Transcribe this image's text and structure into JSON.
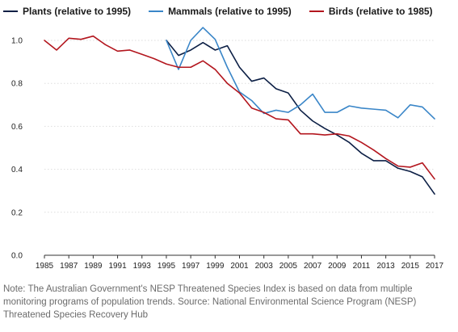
{
  "chart_data": {
    "type": "line",
    "title": "",
    "xlabel": "",
    "ylabel": "",
    "xlim": [
      1985,
      2017
    ],
    "ylim": [
      0.0,
      1.0
    ],
    "grid": true,
    "legend_position": "top-left",
    "x_ticks": [
      "1985",
      "1987",
      "1989",
      "1991",
      "1993",
      "1995",
      "1997",
      "1999",
      "2001",
      "2003",
      "2005",
      "2007",
      "2009",
      "2011",
      "2013",
      "2015",
      "2017"
    ],
    "y_ticks": [
      "0.0",
      "0.2",
      "0.4",
      "0.6",
      "0.8",
      "1.0"
    ],
    "series": [
      {
        "name": "Plants (relative to 1995)",
        "color": "#0c1f45",
        "x": [
          1995,
          1996,
          1997,
          1998,
          1999,
          2000,
          2001,
          2002,
          2003,
          2004,
          2005,
          2006,
          2007,
          2008,
          2009,
          2010,
          2011,
          2012,
          2013,
          2014,
          2015,
          2016,
          2017
        ],
        "values": [
          1.0,
          0.93,
          0.955,
          0.99,
          0.955,
          0.975,
          0.875,
          0.81,
          0.825,
          0.775,
          0.755,
          0.675,
          0.625,
          0.59,
          0.56,
          0.525,
          0.475,
          0.44,
          0.44,
          0.405,
          0.39,
          0.365,
          0.285
        ]
      },
      {
        "name": "Mammals (relative to 1995)",
        "color": "#3a86c8",
        "x": [
          1995,
          1996,
          1997,
          1998,
          1999,
          2000,
          2001,
          2002,
          2003,
          2004,
          2005,
          2006,
          2007,
          2008,
          2009,
          2010,
          2011,
          2012,
          2013,
          2014,
          2015,
          2016,
          2017
        ],
        "values": [
          1.0,
          0.865,
          1.0,
          1.06,
          1.005,
          0.875,
          0.76,
          0.72,
          0.66,
          0.675,
          0.665,
          0.7,
          0.75,
          0.665,
          0.665,
          0.695,
          0.685,
          0.68,
          0.675,
          0.64,
          0.7,
          0.69,
          0.635
        ]
      },
      {
        "name": "Birds (relative to 1985)",
        "color": "#b3161e",
        "x": [
          1985,
          1986,
          1987,
          1988,
          1989,
          1990,
          1991,
          1992,
          1993,
          1994,
          1995,
          1996,
          1997,
          1998,
          1999,
          2000,
          2001,
          2002,
          2003,
          2004,
          2005,
          2006,
          2007,
          2008,
          2009,
          2010,
          2011,
          2012,
          2013,
          2014,
          2015,
          2016,
          2017
        ],
        "values": [
          1.0,
          0.955,
          1.01,
          1.005,
          1.02,
          0.98,
          0.95,
          0.955,
          0.935,
          0.915,
          0.89,
          0.875,
          0.875,
          0.905,
          0.865,
          0.8,
          0.755,
          0.685,
          0.665,
          0.635,
          0.63,
          0.565,
          0.565,
          0.56,
          0.565,
          0.555,
          0.525,
          0.49,
          0.45,
          0.415,
          0.41,
          0.43,
          0.355
        ]
      }
    ]
  },
  "note": "Note: The Australian Government's NESP Threatened Species Index is based on data from multiple monitoring programs of population trends. Source: National Environmental Science Program (NESP) Threatened Species Recovery Hub"
}
